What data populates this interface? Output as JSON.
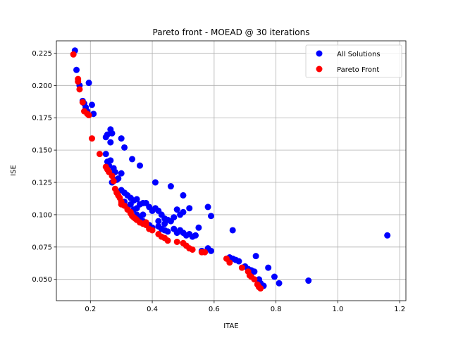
{
  "chart_data": {
    "type": "scatter",
    "title": "Pareto front - MOEAD @ 30 iterations",
    "xlabel": "ITAE",
    "ylabel": "ISE",
    "xlim": [
      0.09,
      1.22
    ],
    "ylim": [
      0.0335,
      0.2345
    ],
    "x_ticks": [
      0.2,
      0.4,
      0.6,
      0.8,
      1.0,
      1.2
    ],
    "x_tick_labels": [
      "0.2",
      "0.4",
      "0.6",
      "0.8",
      "1.0",
      "1.2"
    ],
    "y_ticks": [
      0.05,
      0.075,
      0.1,
      0.125,
      0.15,
      0.175,
      0.2,
      0.225
    ],
    "y_tick_labels": [
      "0.050",
      "0.075",
      "0.100",
      "0.125",
      "0.150",
      "0.175",
      "0.200",
      "0.225"
    ],
    "grid": true,
    "legend_position": "top-right",
    "series": [
      {
        "name": "All Solutions",
        "color": "#0000ff",
        "points": [
          [
            0.15,
            0.227
          ],
          [
            0.155,
            0.212
          ],
          [
            0.165,
            0.2
          ],
          [
            0.175,
            0.188
          ],
          [
            0.18,
            0.186
          ],
          [
            0.185,
            0.183
          ],
          [
            0.19,
            0.18
          ],
          [
            0.195,
            0.202
          ],
          [
            0.205,
            0.185
          ],
          [
            0.21,
            0.178
          ],
          [
            0.25,
            0.16
          ],
          [
            0.255,
            0.162
          ],
          [
            0.265,
            0.166
          ],
          [
            0.27,
            0.163
          ],
          [
            0.3,
            0.159
          ],
          [
            0.31,
            0.152
          ],
          [
            0.265,
            0.156
          ],
          [
            0.25,
            0.147
          ],
          [
            0.255,
            0.141
          ],
          [
            0.26,
            0.138
          ],
          [
            0.265,
            0.142
          ],
          [
            0.275,
            0.136
          ],
          [
            0.28,
            0.133
          ],
          [
            0.29,
            0.128
          ],
          [
            0.3,
            0.132
          ],
          [
            0.335,
            0.143
          ],
          [
            0.36,
            0.138
          ],
          [
            0.41,
            0.125
          ],
          [
            0.46,
            0.122
          ],
          [
            0.27,
            0.125
          ],
          [
            0.285,
            0.127
          ],
          [
            0.3,
            0.119
          ],
          [
            0.31,
            0.117
          ],
          [
            0.32,
            0.115
          ],
          [
            0.33,
            0.113
          ],
          [
            0.34,
            0.111
          ],
          [
            0.35,
            0.112
          ],
          [
            0.36,
            0.108
          ],
          [
            0.37,
            0.109
          ],
          [
            0.38,
            0.109
          ],
          [
            0.39,
            0.106
          ],
          [
            0.4,
            0.103
          ],
          [
            0.41,
            0.105
          ],
          [
            0.42,
            0.103
          ],
          [
            0.43,
            0.1
          ],
          [
            0.44,
            0.097
          ],
          [
            0.45,
            0.096
          ],
          [
            0.46,
            0.095
          ],
          [
            0.47,
            0.098
          ],
          [
            0.48,
            0.104
          ],
          [
            0.49,
            0.1
          ],
          [
            0.5,
            0.102
          ],
          [
            0.5,
            0.115
          ],
          [
            0.52,
            0.105
          ],
          [
            0.58,
            0.106
          ],
          [
            0.59,
            0.099
          ],
          [
            0.35,
            0.1
          ],
          [
            0.36,
            0.097
          ],
          [
            0.37,
            0.095
          ],
          [
            0.38,
            0.093
          ],
          [
            0.39,
            0.092
          ],
          [
            0.42,
            0.091
          ],
          [
            0.43,
            0.089
          ],
          [
            0.44,
            0.088
          ],
          [
            0.45,
            0.087
          ],
          [
            0.47,
            0.089
          ],
          [
            0.48,
            0.086
          ],
          [
            0.49,
            0.088
          ],
          [
            0.5,
            0.086
          ],
          [
            0.51,
            0.084
          ],
          [
            0.52,
            0.085
          ],
          [
            0.53,
            0.083
          ],
          [
            0.54,
            0.084
          ],
          [
            0.55,
            0.09
          ],
          [
            0.58,
            0.074
          ],
          [
            0.59,
            0.072
          ],
          [
            0.66,
            0.088
          ],
          [
            0.65,
            0.067
          ],
          [
            0.66,
            0.066
          ],
          [
            0.67,
            0.065
          ],
          [
            0.68,
            0.064
          ],
          [
            0.7,
            0.06
          ],
          [
            0.71,
            0.058
          ],
          [
            0.72,
            0.057
          ],
          [
            0.73,
            0.056
          ],
          [
            0.735,
            0.068
          ],
          [
            0.745,
            0.05
          ],
          [
            0.75,
            0.047
          ],
          [
            0.76,
            0.045
          ],
          [
            0.775,
            0.059
          ],
          [
            0.795,
            0.052
          ],
          [
            0.81,
            0.047
          ],
          [
            0.905,
            0.049
          ],
          [
            1.16,
            0.084
          ],
          [
            0.32,
            0.106
          ],
          [
            0.34,
            0.104
          ],
          [
            0.31,
            0.11
          ],
          [
            0.33,
            0.108
          ],
          [
            0.35,
            0.105
          ],
          [
            0.4,
            0.09
          ],
          [
            0.56,
            0.072
          ],
          [
            0.44,
            0.093
          ],
          [
            0.37,
            0.1
          ],
          [
            0.42,
            0.095
          ]
        ]
      },
      {
        "name": "Pareto Front",
        "color": "#ff0000",
        "points": [
          [
            0.145,
            0.224
          ],
          [
            0.16,
            0.205
          ],
          [
            0.16,
            0.203
          ],
          [
            0.165,
            0.197
          ],
          [
            0.175,
            0.187
          ],
          [
            0.18,
            0.18
          ],
          [
            0.19,
            0.178
          ],
          [
            0.195,
            0.177
          ],
          [
            0.205,
            0.159
          ],
          [
            0.23,
            0.147
          ],
          [
            0.25,
            0.137
          ],
          [
            0.255,
            0.135
          ],
          [
            0.26,
            0.133
          ],
          [
            0.27,
            0.13
          ],
          [
            0.275,
            0.126
          ],
          [
            0.28,
            0.12
          ],
          [
            0.285,
            0.117
          ],
          [
            0.29,
            0.115
          ],
          [
            0.295,
            0.113
          ],
          [
            0.3,
            0.11
          ],
          [
            0.31,
            0.107
          ],
          [
            0.32,
            0.104
          ],
          [
            0.33,
            0.101
          ],
          [
            0.335,
            0.099
          ],
          [
            0.34,
            0.098
          ],
          [
            0.345,
            0.097
          ],
          [
            0.35,
            0.096
          ],
          [
            0.36,
            0.094
          ],
          [
            0.37,
            0.093
          ],
          [
            0.38,
            0.092
          ],
          [
            0.39,
            0.089
          ],
          [
            0.4,
            0.088
          ],
          [
            0.42,
            0.085
          ],
          [
            0.43,
            0.083
          ],
          [
            0.44,
            0.082
          ],
          [
            0.45,
            0.08
          ],
          [
            0.48,
            0.079
          ],
          [
            0.5,
            0.078
          ],
          [
            0.51,
            0.076
          ],
          [
            0.52,
            0.074
          ],
          [
            0.53,
            0.073
          ],
          [
            0.56,
            0.071
          ],
          [
            0.57,
            0.071
          ],
          [
            0.64,
            0.066
          ],
          [
            0.65,
            0.063
          ],
          [
            0.69,
            0.059
          ],
          [
            0.71,
            0.056
          ],
          [
            0.715,
            0.053
          ],
          [
            0.72,
            0.052
          ],
          [
            0.73,
            0.05
          ],
          [
            0.74,
            0.046
          ],
          [
            0.745,
            0.044
          ],
          [
            0.75,
            0.043
          ],
          [
            0.3,
            0.108
          ],
          [
            0.38,
            0.094
          ],
          [
            0.33,
            0.102
          ]
        ]
      }
    ]
  }
}
